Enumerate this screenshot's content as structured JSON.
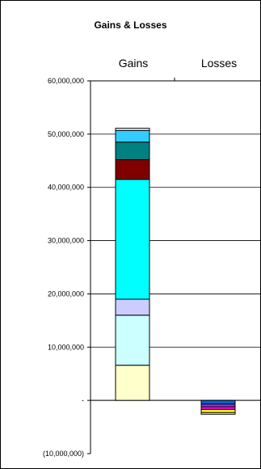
{
  "chart_data": {
    "type": "bar",
    "stacked": true,
    "title": "Gains & Losses",
    "categories": [
      "Gains",
      "Losses"
    ],
    "ylim": [
      -10000000,
      60000000
    ],
    "y_ticks": [
      60000000,
      50000000,
      40000000,
      30000000,
      20000000,
      10000000,
      0,
      -10000000
    ],
    "y_tick_labels": [
      "60,000,000",
      "50,000,000",
      "40,000,000",
      "30,000,000",
      "20,000,000",
      "10,000,000",
      "-",
      "(10,000,000)"
    ],
    "gridlines": true,
    "legend": "none",
    "segments": {
      "Gains": [
        {
          "value": 6600000,
          "color": "#FFFFCC"
        },
        {
          "value": 9400000,
          "color": "#CCFFFF"
        },
        {
          "value": 3000000,
          "color": "#CCCCFF"
        },
        {
          "value": 22500000,
          "color": "#00FFFF"
        },
        {
          "value": 3700000,
          "color": "#800000"
        },
        {
          "value": 3300000,
          "color": "#008080"
        },
        {
          "value": 2200000,
          "color": "#33CCFF"
        },
        {
          "value": 400000,
          "color": "#FFFFFF"
        }
      ],
      "Losses": [
        {
          "value": -700000,
          "color": "#0066CC"
        },
        {
          "value": -500000,
          "color": "#9933FF"
        },
        {
          "value": -500000,
          "color": "#FF00FF"
        },
        {
          "value": -600000,
          "color": "#FFFF00"
        },
        {
          "value": -300000,
          "color": "#FFFFFF"
        }
      ]
    }
  }
}
